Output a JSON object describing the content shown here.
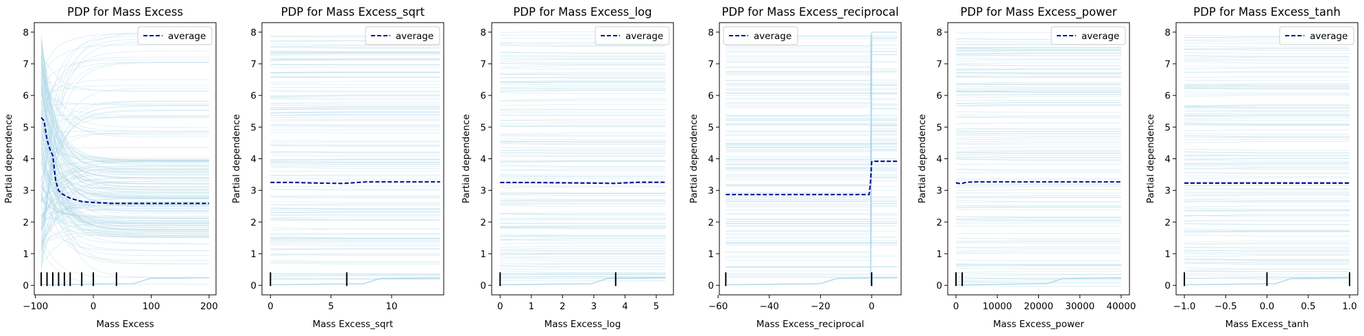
{
  "chart_data": [
    {
      "type": "line",
      "title": "PDP for Mass Excess",
      "xlabel": "Mass Excess",
      "ylabel": "Partial dependence",
      "xlim": [
        -102,
        212
      ],
      "ylim": [
        -0.3,
        8.3
      ],
      "xticks": [
        -100,
        0,
        100,
        200
      ],
      "xtick_labels": [
        "−100",
        "0",
        "100",
        "200"
      ],
      "yticks": [
        0,
        1,
        2,
        3,
        4,
        5,
        6,
        7,
        8
      ],
      "ytick_labels": [
        "0",
        "1",
        "2",
        "3",
        "4",
        "5",
        "6",
        "7",
        "8"
      ],
      "legend": {
        "label": "average",
        "position": "top-right"
      },
      "average": {
        "x": [
          -90,
          -85,
          -80,
          -75,
          -70,
          -65,
          -60,
          -55,
          -50,
          -45,
          -40,
          -30,
          -20,
          -10,
          0,
          10,
          20,
          30,
          40,
          60,
          100,
          150,
          200
        ],
        "y": [
          5.3,
          5.2,
          4.6,
          4.3,
          4.1,
          3.3,
          3.0,
          2.9,
          2.85,
          2.8,
          2.75,
          2.7,
          2.65,
          2.63,
          2.62,
          2.61,
          2.6,
          2.59,
          2.59,
          2.59,
          2.59,
          2.59,
          2.59
        ]
      },
      "rug": [
        -90,
        -80,
        -70,
        -60,
        -50,
        -40,
        -20,
        0,
        40
      ],
      "ice_pattern": "drop"
    },
    {
      "type": "line",
      "title": "PDP for Mass Excess_sqrt",
      "xlabel": "Mass Excess_sqrt",
      "ylabel": "Partial dependence",
      "xlim": [
        -0.7,
        14.3
      ],
      "ylim": [
        -0.3,
        8.3
      ],
      "xticks": [
        0,
        5,
        10
      ],
      "xtick_labels": [
        "0",
        "5",
        "10"
      ],
      "yticks": [
        0,
        1,
        2,
        3,
        4,
        5,
        6,
        7,
        8
      ],
      "ytick_labels": [
        "0",
        "1",
        "2",
        "3",
        "4",
        "5",
        "6",
        "7",
        "8"
      ],
      "legend": {
        "label": "average",
        "position": "top-right"
      },
      "average": {
        "x": [
          0,
          2,
          4,
          6,
          7.5,
          8,
          10,
          14
        ],
        "y": [
          3.25,
          3.25,
          3.23,
          3.22,
          3.26,
          3.27,
          3.27,
          3.27
        ]
      },
      "rug": [
        0,
        6.3
      ],
      "ice_pattern": "flat"
    },
    {
      "type": "line",
      "title": "PDP for Mass Excess_log",
      "xlabel": "Mass Excess_log",
      "ylabel": "Partial dependence",
      "xlim": [
        -0.27,
        5.55
      ],
      "ylim": [
        -0.3,
        8.3
      ],
      "xticks": [
        0,
        1,
        2,
        3,
        4,
        5
      ],
      "xtick_labels": [
        "0",
        "1",
        "2",
        "3",
        "4",
        "5"
      ],
      "yticks": [
        0,
        1,
        2,
        3,
        4,
        5,
        6,
        7,
        8
      ],
      "ytick_labels": [
        "0",
        "1",
        "2",
        "3",
        "4",
        "5",
        "6",
        "7",
        "8"
      ],
      "legend": {
        "label": "average",
        "position": "top-right"
      },
      "average": {
        "x": [
          0,
          1,
          2,
          3,
          3.7,
          4,
          4.5,
          5.3
        ],
        "y": [
          3.25,
          3.25,
          3.24,
          3.23,
          3.22,
          3.24,
          3.26,
          3.26
        ]
      },
      "rug": [
        0,
        3.7
      ],
      "ice_pattern": "flat"
    },
    {
      "type": "line",
      "title": "PDP for Mass Excess_reciprocal",
      "xlabel": "Mass Excess_reciprocal",
      "ylabel": "Partial dependence",
      "xlim": [
        -59.5,
        11.5
      ],
      "ylim": [
        -0.3,
        8.3
      ],
      "xticks": [
        -60,
        -40,
        -20,
        0
      ],
      "xtick_labels": [
        "−60",
        "−40",
        "−20",
        "0"
      ],
      "yticks": [
        0,
        1,
        2,
        3,
        4,
        5,
        6,
        7,
        8
      ],
      "ytick_labels": [
        "0",
        "1",
        "2",
        "3",
        "4",
        "5",
        "6",
        "7",
        "8"
      ],
      "legend": {
        "label": "average",
        "position": "top-left"
      },
      "average": {
        "x": [
          -57,
          -40,
          -20,
          -1,
          -0.5,
          0,
          0.5,
          5,
          10
        ],
        "y": [
          2.87,
          2.87,
          2.87,
          2.87,
          3.2,
          3.9,
          3.92,
          3.92,
          3.92
        ]
      },
      "rug": [
        -57,
        0
      ],
      "ice_pattern": "step"
    },
    {
      "type": "line",
      "title": "PDP for Mass Excess_power",
      "xlabel": "Mass Excess_power",
      "ylabel": "Partial dependence",
      "xlim": [
        -2000,
        42000
      ],
      "ylim": [
        -0.3,
        8.3
      ],
      "xticks": [
        0,
        10000,
        20000,
        30000,
        40000
      ],
      "xtick_labels": [
        "0",
        "10000",
        "20000",
        "30000",
        "40000"
      ],
      "yticks": [
        0,
        1,
        2,
        3,
        4,
        5,
        6,
        7,
        8
      ],
      "ytick_labels": [
        "0",
        "1",
        "2",
        "3",
        "4",
        "5",
        "6",
        "7",
        "8"
      ],
      "legend": {
        "label": "average",
        "position": "top-right"
      },
      "average": {
        "x": [
          0,
          800,
          1500,
          2500,
          5000,
          10000,
          20000,
          40000
        ],
        "y": [
          3.24,
          3.22,
          3.22,
          3.26,
          3.27,
          3.27,
          3.27,
          3.27
        ]
      },
      "rug": [
        0,
        1500
      ],
      "ice_pattern": "flat"
    },
    {
      "type": "line",
      "title": "PDP for Mass Excess_tanh",
      "xlabel": "Mass Excess_tanh",
      "ylabel": "Partial dependence",
      "xlim": [
        -1.1,
        1.1
      ],
      "ylim": [
        -0.3,
        8.3
      ],
      "xticks": [
        -1.0,
        -0.5,
        0.0,
        0.5,
        1.0
      ],
      "xtick_labels": [
        "−1.0",
        "−0.5",
        "0.0",
        "0.5",
        "1.0"
      ],
      "yticks": [
        0,
        1,
        2,
        3,
        4,
        5,
        6,
        7,
        8
      ],
      "ytick_labels": [
        "0",
        "1",
        "2",
        "3",
        "4",
        "5",
        "6",
        "7",
        "8"
      ],
      "legend": {
        "label": "average",
        "position": "top-right"
      },
      "average": {
        "x": [
          -1.0,
          -0.5,
          0.0,
          0.5,
          1.0
        ],
        "y": [
          3.23,
          3.23,
          3.23,
          3.23,
          3.23
        ]
      },
      "rug": [
        -1.0,
        0.0,
        1.0
      ],
      "ice_pattern": "flat"
    }
  ],
  "colors": {
    "ice": "#add8e6",
    "average": "#00008b",
    "axes": "#000000",
    "legend_border": "#cccccc"
  }
}
